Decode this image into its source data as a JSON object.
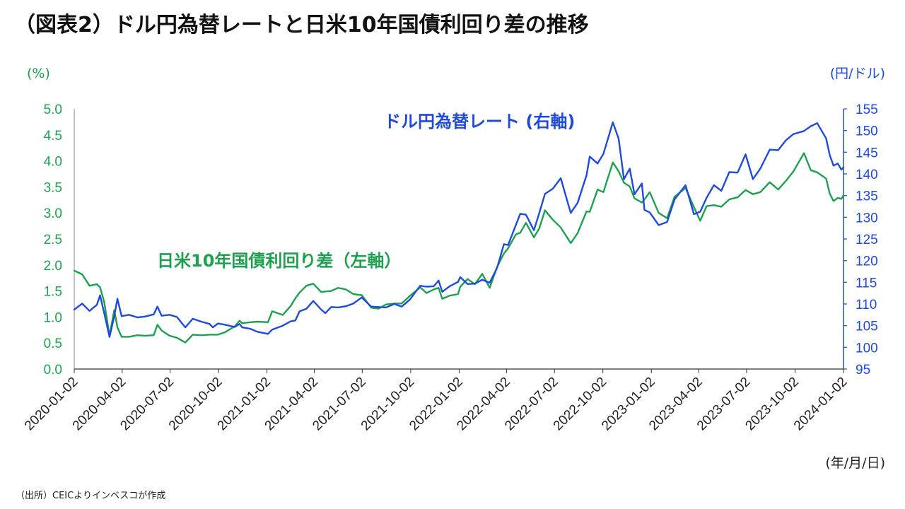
{
  "chart_data": {
    "type": "line",
    "title": "（図表2）ドル円為替レートと日米10年国債利回り差の推移",
    "xlabel": "(年/月/日)",
    "ylabel_left": "(%)",
    "ylabel_right": "(円/ドル)",
    "xlim": [
      "2020-01-02",
      "2024-01-02"
    ],
    "ylim_left": [
      0,
      5
    ],
    "ylim_right": [
      95,
      155
    ],
    "grid": false,
    "legend": "inline",
    "x_ticks": [
      "2020-01-02",
      "2020-04-02",
      "2020-07-02",
      "2020-10-02",
      "2021-01-02",
      "2021-04-02",
      "2021-07-02",
      "2021-10-02",
      "2022-01-02",
      "2022-04-02",
      "2022-07-02",
      "2022-10-02",
      "2023-01-02",
      "2023-04-02",
      "2023-07-02",
      "2023-10-02",
      "2024-01-02"
    ],
    "y_left_ticks": [
      "0.0",
      "0.5",
      "1.0",
      "1.5",
      "2.0",
      "2.5",
      "3.0",
      "3.5",
      "4.0",
      "4.5",
      "5.0"
    ],
    "y_right_ticks": [
      95,
      100,
      105,
      110,
      115,
      120,
      125,
      130,
      135,
      140,
      145,
      150,
      155
    ],
    "x": [
      "2020-01-02",
      "2020-01-17",
      "2020-01-31",
      "2020-02-14",
      "2020-02-20",
      "2020-02-28",
      "2020-03-09",
      "2020-03-18",
      "2020-03-24",
      "2020-04-01",
      "2020-04-15",
      "2020-05-01",
      "2020-05-15",
      "2020-06-01",
      "2020-06-08",
      "2020-06-16",
      "2020-07-01",
      "2020-07-15",
      "2020-07-31",
      "2020-08-14",
      "2020-08-31",
      "2020-09-15",
      "2020-09-21",
      "2020-10-01",
      "2020-10-15",
      "2020-11-02",
      "2020-11-11",
      "2020-11-16",
      "2020-12-01",
      "2020-12-15",
      "2021-01-04",
      "2021-01-12",
      "2021-02-01",
      "2021-02-16",
      "2021-02-25",
      "2021-03-05",
      "2021-03-18",
      "2021-03-31",
      "2021-04-15",
      "2021-04-23",
      "2021-05-04",
      "2021-05-17",
      "2021-06-01",
      "2021-06-15",
      "2021-07-01",
      "2021-07-19",
      "2021-08-02",
      "2021-08-16",
      "2021-09-01",
      "2021-09-15",
      "2021-10-01",
      "2021-10-20",
      "2021-11-01",
      "2021-11-15",
      "2021-11-24",
      "2021-12-01",
      "2021-12-15",
      "2021-12-31",
      "2022-01-04",
      "2022-01-18",
      "2022-02-01",
      "2022-02-15",
      "2022-03-01",
      "2022-03-15",
      "2022-03-28",
      "2022-04-05",
      "2022-04-20",
      "2022-04-28",
      "2022-05-09",
      "2022-05-24",
      "2022-06-03",
      "2022-06-14",
      "2022-06-29",
      "2022-07-14",
      "2022-08-02",
      "2022-08-15",
      "2022-09-01",
      "2022-09-07",
      "2022-09-22",
      "2022-10-03",
      "2022-10-21",
      "2022-11-01",
      "2022-11-11",
      "2022-11-22",
      "2022-12-01",
      "2022-12-15",
      "2022-12-20",
      "2022-12-30",
      "2023-01-16",
      "2023-02-01",
      "2023-02-15",
      "2023-03-08",
      "2023-03-24",
      "2023-04-05",
      "2023-04-17",
      "2023-05-01",
      "2023-05-15",
      "2023-05-30",
      "2023-06-15",
      "2023-06-30",
      "2023-07-14",
      "2023-07-28",
      "2023-08-15",
      "2023-08-31",
      "2023-09-15",
      "2023-09-29",
      "2023-10-19",
      "2023-11-01",
      "2023-11-13",
      "2023-11-30",
      "2023-12-07",
      "2023-12-14",
      "2023-12-22",
      "2023-12-29",
      "2024-01-02"
    ],
    "series": [
      {
        "name": "ドル円為替レート (右軸)",
        "axis": "right",
        "color": "#1f4bd8",
        "values": [
          108.7,
          110.1,
          108.4,
          109.8,
          112.0,
          107.9,
          102.4,
          107.2,
          111.2,
          107.2,
          107.5,
          106.9,
          107.1,
          107.6,
          109.4,
          107.3,
          107.5,
          107.0,
          104.6,
          106.6,
          105.9,
          105.4,
          104.6,
          105.5,
          105.2,
          104.7,
          105.4,
          104.6,
          104.3,
          103.6,
          103.1,
          104.1,
          105.0,
          106.0,
          106.2,
          108.3,
          108.9,
          110.7,
          108.7,
          107.9,
          109.3,
          109.2,
          109.5,
          110.1,
          111.5,
          109.4,
          109.3,
          109.2,
          110.0,
          109.4,
          111.1,
          114.2,
          114.0,
          114.1,
          115.4,
          112.8,
          114.1,
          115.1,
          116.2,
          114.6,
          114.7,
          115.6,
          114.9,
          118.3,
          123.8,
          123.6,
          128.3,
          130.8,
          130.6,
          127.0,
          130.9,
          135.4,
          136.6,
          139.0,
          131.0,
          133.3,
          139.7,
          144.0,
          142.4,
          144.6,
          151.9,
          148.1,
          138.8,
          141.2,
          135.3,
          137.8,
          131.7,
          131.1,
          128.2,
          128.9,
          134.1,
          137.4,
          130.7,
          131.3,
          134.5,
          137.4,
          136.1,
          140.4,
          140.3,
          144.5,
          138.8,
          141.2,
          145.6,
          145.5,
          147.8,
          149.2,
          149.9,
          151.0,
          151.7,
          148.2,
          144.3,
          141.9,
          142.4,
          141.0,
          141.5
        ]
      },
      {
        "name": "日米10年国債利回り差（左軸）",
        "axis": "left",
        "color": "#1fa050",
        "values": [
          1.89,
          1.82,
          1.6,
          1.63,
          1.57,
          1.29,
          0.64,
          1.13,
          0.8,
          0.62,
          0.62,
          0.65,
          0.64,
          0.65,
          0.85,
          0.74,
          0.64,
          0.6,
          0.51,
          0.66,
          0.65,
          0.66,
          0.66,
          0.66,
          0.71,
          0.82,
          0.93,
          0.88,
          0.9,
          0.91,
          0.9,
          1.11,
          1.04,
          1.21,
          1.36,
          1.47,
          1.6,
          1.64,
          1.48,
          1.49,
          1.5,
          1.56,
          1.53,
          1.44,
          1.42,
          1.18,
          1.16,
          1.24,
          1.26,
          1.26,
          1.41,
          1.57,
          1.46,
          1.53,
          1.56,
          1.35,
          1.41,
          1.44,
          1.58,
          1.73,
          1.63,
          1.83,
          1.56,
          1.96,
          2.22,
          2.32,
          2.59,
          2.62,
          2.81,
          2.53,
          2.7,
          3.05,
          2.87,
          2.72,
          2.42,
          2.61,
          3.03,
          3.02,
          3.45,
          3.4,
          3.97,
          3.8,
          3.58,
          3.51,
          3.28,
          3.2,
          3.26,
          3.4,
          3.0,
          2.9,
          3.31,
          3.48,
          3.11,
          2.85,
          3.13,
          3.15,
          3.12,
          3.26,
          3.3,
          3.44,
          3.36,
          3.4,
          3.59,
          3.45,
          3.62,
          3.8,
          4.15,
          3.82,
          3.78,
          3.66,
          3.37,
          3.23,
          3.29,
          3.27,
          3.34
        ]
      }
    ]
  },
  "source_note": "（出所）CEICよりインベスコが作成"
}
